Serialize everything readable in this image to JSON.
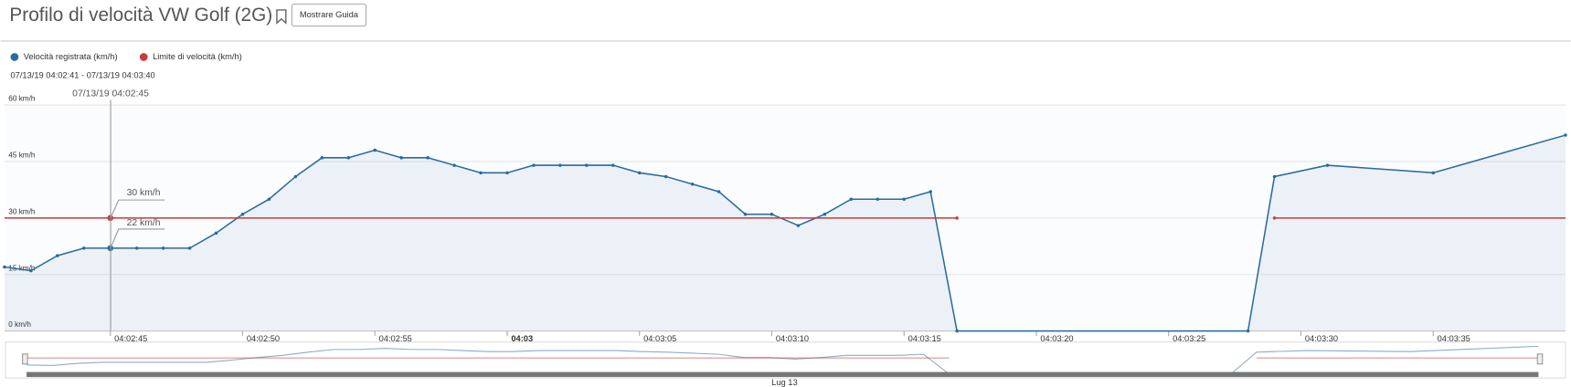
{
  "header": {
    "title": "Profilo di velocità VW Golf (2G)",
    "button": "Mostrare Guida"
  },
  "chart_data": {
    "type": "line",
    "range_text": "07/13/19 04:02:41 - 07/13/19 04:03:40",
    "annotations": [
      "07/13/19 04:02:45",
      "30 km/h",
      "22 km/h"
    ],
    "navigator_label": "Lug 13",
    "x": [
      "04:02:41",
      "04:02:42",
      "04:02:43",
      "04:02:44",
      "04:02:45",
      "04:02:46",
      "04:02:47",
      "04:02:48",
      "04:02:49",
      "04:02:50",
      "04:02:51",
      "04:02:52",
      "04:02:53",
      "04:02:54",
      "04:02:55",
      "04:02:56",
      "04:02:57",
      "04:02:58",
      "04:02:59",
      "04:03:00",
      "04:03:01",
      "04:03:02",
      "04:03:03",
      "04:03:04",
      "04:03:05",
      "04:03:06",
      "04:03:07",
      "04:03:08",
      "04:03:09",
      "04:03:10",
      "04:03:11",
      "04:03:12",
      "04:03:13",
      "04:03:14",
      "04:03:15",
      "04:03:16",
      "04:03:17",
      "04:03:28",
      "04:03:29",
      "04:03:31",
      "04:03:35",
      "04:03:40"
    ],
    "series": [
      {
        "name": "Velocità registrata (km/h)",
        "color": "#2b6a9e",
        "values": [
          17,
          16,
          20,
          22,
          22,
          22,
          22,
          22,
          26,
          31,
          35,
          41,
          46,
          46,
          48,
          46,
          46,
          44,
          42,
          42,
          44,
          44,
          44,
          44,
          42,
          41,
          39,
          37,
          31,
          31,
          28,
          31,
          35,
          35,
          35,
          37,
          0,
          0,
          41,
          44,
          42,
          52
        ]
      },
      {
        "name": "Limite di velocità (km/h)",
        "color": "#c43c3c",
        "values": [
          30,
          30,
          30,
          30,
          30,
          30,
          30,
          30,
          30,
          30,
          30,
          30,
          30,
          30,
          30,
          30,
          30,
          30,
          30,
          30,
          30,
          30,
          30,
          30,
          30,
          30,
          30,
          30,
          30,
          30,
          30,
          30,
          30,
          30,
          30,
          30,
          30,
          null,
          30,
          30,
          30,
          30
        ]
      }
    ],
    "xlim": [
      "04:02:41",
      "04:03:40"
    ],
    "xticks": [
      "04:02:45",
      "04:02:50",
      "04:02:55",
      "04:03",
      "04:03:05",
      "04:03:10",
      "04:03:15",
      "04:03:20",
      "04:03:25",
      "04:03:30",
      "04:03:35"
    ],
    "ylim": [
      0,
      60
    ],
    "yticks": [
      {
        "value": 0,
        "label": "0 km/h"
      },
      {
        "value": 15,
        "label": "15 km/h"
      },
      {
        "value": 30,
        "label": "30 km/h"
      },
      {
        "value": 45,
        "label": "45 km/h"
      },
      {
        "value": 60,
        "label": "60 km/h"
      }
    ],
    "grid": true
  }
}
